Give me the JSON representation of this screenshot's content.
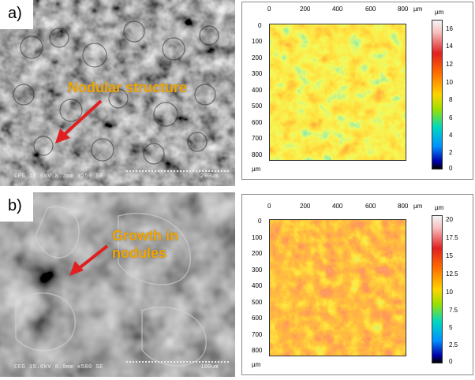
{
  "panels": [
    {
      "label": "a)",
      "annotation": "Nodular structure",
      "sem_info": "CEG 15.0kV 8.7mm x250 SE",
      "sem_scale": "200um",
      "map": {
        "unit": "µm",
        "x_ticks": [
          "0",
          "200",
          "400",
          "600",
          "800"
        ],
        "x_unit": "µm",
        "y_ticks": [
          "0",
          "100",
          "200",
          "300",
          "400",
          "500",
          "600",
          "700",
          "800"
        ],
        "y_unit": "µm",
        "colorbar_unit": "µm",
        "colorbar_ticks": [
          "16",
          "14",
          "12",
          "10",
          "8",
          "6",
          "4",
          "2",
          "0"
        ]
      }
    },
    {
      "label": "b)",
      "annotation": "Growth in\nnodules",
      "sem_info": "CEG 15.0kV 8.9mm x500 SE",
      "sem_scale": "100um",
      "map": {
        "unit": "µm",
        "x_ticks": [
          "0",
          "200",
          "400",
          "600",
          "800"
        ],
        "x_unit": "µm",
        "y_ticks": [
          "0",
          "100",
          "200",
          "300",
          "400",
          "500",
          "600",
          "700",
          "800"
        ],
        "y_unit": "µm",
        "colorbar_unit": "µm",
        "colorbar_ticks": [
          "20",
          "17.5",
          "15",
          "12.5",
          "10",
          "7.5",
          "5",
          "2.5",
          "0"
        ]
      }
    }
  ],
  "colors": {
    "annotation": "#f2a500",
    "arrow": "#e02020"
  }
}
